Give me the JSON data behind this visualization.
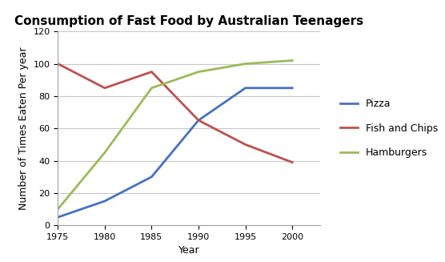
{
  "title": "Consumption of Fast Food by Australian Teenagers",
  "xlabel": "Year",
  "ylabel": "Number of Times Eaten Per year",
  "years": [
    1975,
    1980,
    1985,
    1990,
    1995,
    2000
  ],
  "pizza": [
    5,
    15,
    30,
    65,
    85,
    85
  ],
  "fish_and_chips": [
    100,
    85,
    95,
    65,
    50,
    39
  ],
  "hamburgers": [
    10,
    45,
    85,
    95,
    100,
    102
  ],
  "pizza_color": "#4472C4",
  "fish_color": "#C0504D",
  "hamburgers_color": "#9BBB59",
  "ylim": [
    0,
    120
  ],
  "yticks": [
    0,
    20,
    40,
    60,
    80,
    100,
    120
  ],
  "xticks": [
    1975,
    1980,
    1985,
    1990,
    1995,
    2000
  ],
  "line_width": 2.0,
  "title_fontsize": 11,
  "axis_label_fontsize": 9,
  "tick_fontsize": 8,
  "legend_fontsize": 9,
  "background_color": "#FFFFFF",
  "grid_color": "#C8C8C8"
}
